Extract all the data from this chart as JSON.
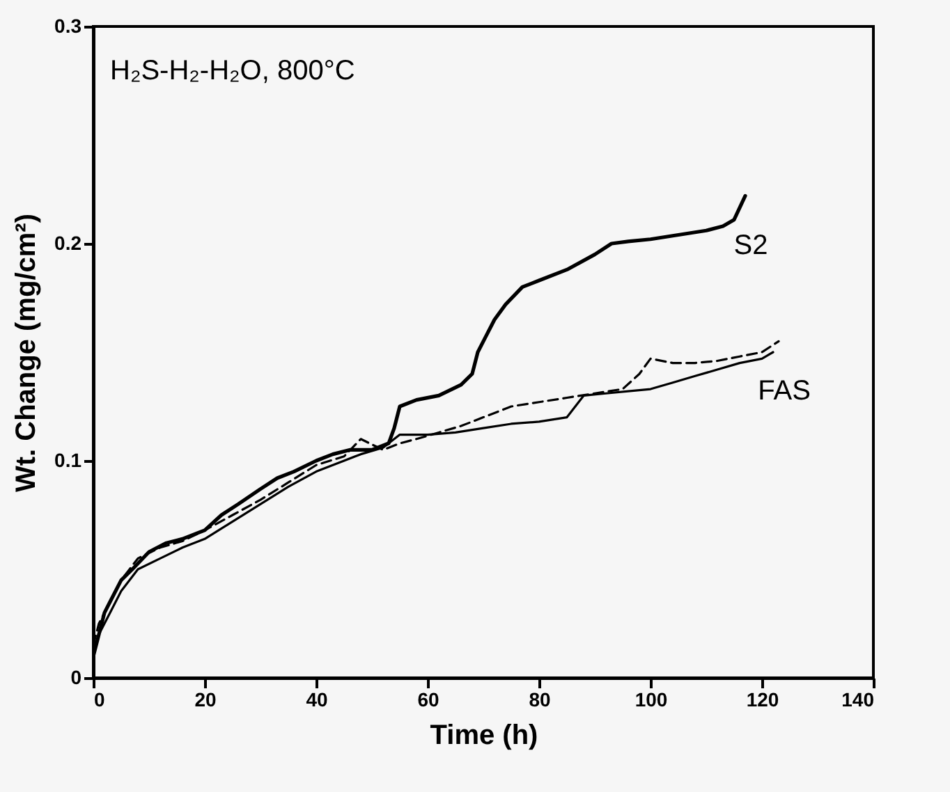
{
  "chart_data": {
    "type": "line",
    "xlabel": "Time (h)",
    "ylabel": "Wt. Change (mg/cm²)",
    "xlim": [
      0,
      140
    ],
    "xticks": [
      0,
      20,
      40,
      60,
      80,
      100,
      120,
      140
    ],
    "ylim": [
      0,
      0.3
    ],
    "yticks": [
      0,
      0.1,
      0.2,
      0.3
    ],
    "grid": false,
    "legend": false,
    "marker": "none",
    "annotations": [
      "H₂S-H₂-H₂O, 800°C"
    ],
    "series": [
      {
        "name": "S2",
        "color": "#000000",
        "line_style": "solid",
        "x": [
          0,
          1,
          2,
          3,
          5,
          7,
          10,
          13,
          16,
          20,
          23,
          26,
          30,
          33,
          36,
          40,
          43,
          46,
          50,
          53,
          54,
          55,
          58,
          62,
          66,
          68,
          69,
          70,
          72,
          74,
          77,
          80,
          85,
          90,
          93,
          96,
          100,
          105,
          110,
          113,
          115,
          117
        ],
        "values": [
          0.01,
          0.02,
          0.03,
          0.035,
          0.045,
          0.05,
          0.058,
          0.062,
          0.064,
          0.068,
          0.075,
          0.08,
          0.087,
          0.092,
          0.095,
          0.1,
          0.103,
          0.105,
          0.105,
          0.108,
          0.115,
          0.125,
          0.128,
          0.13,
          0.135,
          0.14,
          0.15,
          0.155,
          0.165,
          0.172,
          0.18,
          0.183,
          0.188,
          0.195,
          0.2,
          0.201,
          0.202,
          0.204,
          0.206,
          0.208,
          0.211,
          0.222
        ]
      },
      {
        "color": "#000000",
        "line_style": "solid",
        "x": [
          0,
          1,
          3,
          5,
          8,
          12,
          16,
          20,
          25,
          30,
          35,
          40,
          45,
          48,
          52,
          55,
          60,
          65,
          70,
          75,
          80,
          85,
          88,
          92,
          96,
          100,
          104,
          108,
          112,
          116,
          120,
          122
        ],
        "values": [
          0.01,
          0.02,
          0.03,
          0.04,
          0.05,
          0.055,
          0.06,
          0.064,
          0.072,
          0.08,
          0.088,
          0.095,
          0.1,
          0.103,
          0.106,
          0.112,
          0.112,
          0.113,
          0.115,
          0.117,
          0.118,
          0.12,
          0.13,
          0.131,
          0.132,
          0.133,
          0.136,
          0.139,
          0.142,
          0.145,
          0.147,
          0.15
        ]
      },
      {
        "name": "FAS",
        "color": "#000000",
        "line_style": "dashed",
        "x": [
          0,
          1,
          3,
          5,
          8,
          12,
          16,
          20,
          25,
          30,
          35,
          40,
          45,
          48,
          52,
          55,
          58,
          62,
          66,
          70,
          75,
          80,
          85,
          90,
          95,
          98,
          100,
          104,
          108,
          112,
          116,
          120,
          123
        ],
        "values": [
          0.015,
          0.025,
          0.035,
          0.045,
          0.055,
          0.06,
          0.063,
          0.068,
          0.075,
          0.082,
          0.09,
          0.098,
          0.102,
          0.11,
          0.105,
          0.108,
          0.11,
          0.113,
          0.116,
          0.12,
          0.125,
          0.127,
          0.129,
          0.131,
          0.133,
          0.14,
          0.147,
          0.145,
          0.145,
          0.146,
          0.148,
          0.15,
          0.155
        ]
      }
    ]
  }
}
